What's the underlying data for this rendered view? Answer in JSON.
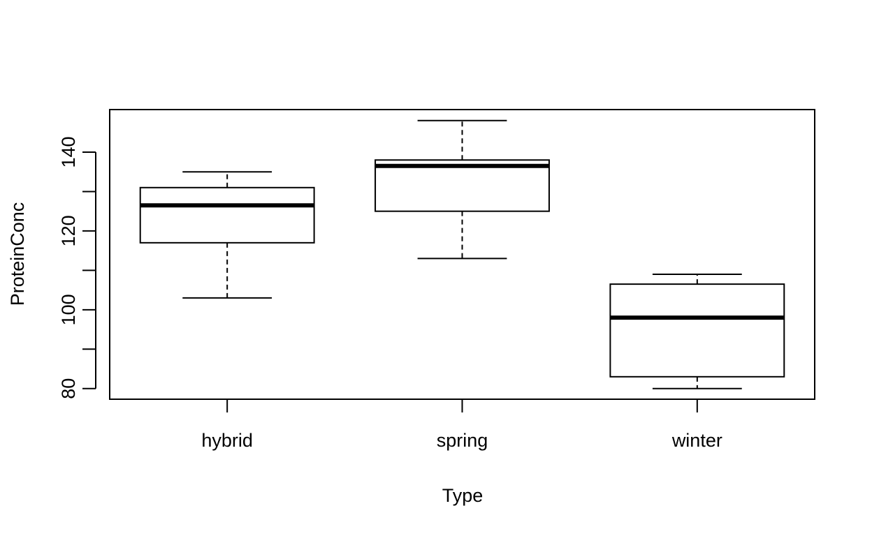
{
  "chart_data": {
    "type": "box",
    "title": "",
    "xlabel": "Type",
    "ylabel": "ProteinConc",
    "ylim": [
      77.3,
      150.8
    ],
    "yticks": [
      80,
      100,
      120,
      140
    ],
    "ytick_labels": [
      "80",
      "100",
      "120",
      "140"
    ],
    "categories": [
      "hybrid",
      "spring",
      "winter"
    ],
    "boxes": [
      {
        "category": "hybrid",
        "whisker_low": 103,
        "q1": 117,
        "median": 126.5,
        "q3": 131,
        "whisker_high": 135
      },
      {
        "category": "spring",
        "whisker_low": 113,
        "q1": 125,
        "median": 136.5,
        "q3": 138,
        "whisker_high": 148
      },
      {
        "category": "winter",
        "whisker_low": 80,
        "q1": 83,
        "median": 98,
        "q3": 106.5,
        "whisker_high": 109
      }
    ],
    "grid": false,
    "legend": "none",
    "colors": {
      "box_fill": "#ffffff",
      "stroke": "#000000"
    }
  }
}
